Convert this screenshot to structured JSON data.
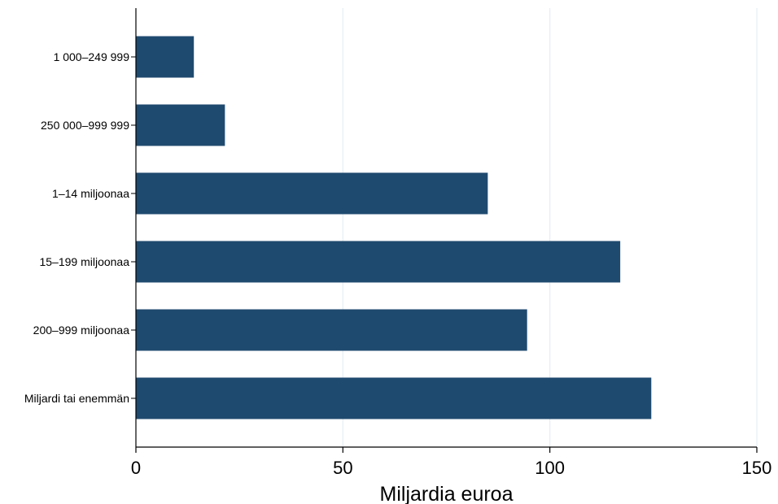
{
  "chart_data": {
    "type": "bar",
    "orientation": "horizontal",
    "categories": [
      "1 000–249 999",
      "250 000–999 999",
      "1–14 miljoonaa",
      "15–199 miljoonaa",
      "200–999 miljoonaa",
      "Miljardi tai enemmän"
    ],
    "values": [
      14,
      21.5,
      85,
      117,
      94.5,
      124.5
    ],
    "xlabel": "Miljardia euroa",
    "ylabel": "",
    "xlim": [
      0,
      150
    ],
    "xticks": [
      0,
      50,
      100,
      150
    ],
    "xtick_labels": [
      "0",
      "50",
      "100",
      "150"
    ],
    "grid": "vertical",
    "legend": "none",
    "colors": {
      "bar": "#1f4a6f",
      "grid": "#e4eef2",
      "axis": "#000000"
    }
  }
}
